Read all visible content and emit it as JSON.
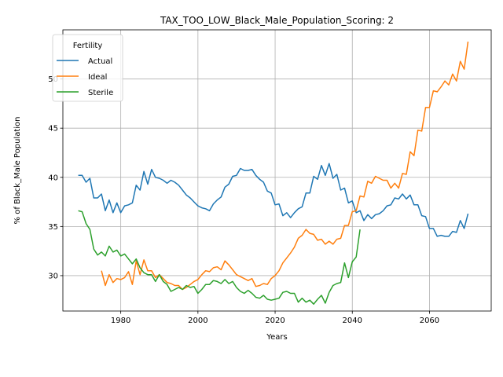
{
  "chart_data": {
    "type": "line",
    "title": "TAX_TOO_LOW_Black_Male_Population_Scoring: 2",
    "xlabel": "Years",
    "ylabel": "% of Black_Male Population",
    "xlim": [
      1965,
      2076
    ],
    "ylim": [
      26.4,
      55
    ],
    "xticks": [
      1980,
      2000,
      2020,
      2040,
      2060
    ],
    "yticks": [
      30,
      35,
      40,
      45,
      50
    ],
    "grid": true,
    "legend": {
      "title": "Fertility",
      "placement": "top-left"
    },
    "series": [
      {
        "name": "Actual",
        "color": "#1f77b4",
        "x": [
          1969,
          1970,
          1971,
          1972,
          1973,
          1974,
          1975,
          1976,
          1977,
          1978,
          1979,
          1980,
          1981,
          1982,
          1983,
          1984,
          1985,
          1986,
          1987,
          1988,
          1989,
          1990,
          1991,
          1992,
          1993,
          1994,
          1995,
          1996,
          1997,
          1998,
          1999,
          2000,
          2001,
          2002,
          2003,
          2004,
          2005,
          2006,
          2007,
          2008,
          2009,
          2010,
          2011,
          2012,
          2013,
          2014,
          2015,
          2016,
          2017,
          2018,
          2019,
          2020,
          2021,
          2022,
          2023,
          2024,
          2025,
          2026,
          2027,
          2028,
          2029,
          2030,
          2031,
          2032,
          2033,
          2034,
          2035,
          2036,
          2037,
          2038,
          2039,
          2040,
          2041,
          2042,
          2043,
          2044,
          2045,
          2046,
          2047,
          2048,
          2049,
          2050,
          2051,
          2052,
          2053,
          2054,
          2055,
          2056,
          2057,
          2058,
          2059,
          2060,
          2061,
          2062,
          2063,
          2064,
          2065,
          2066,
          2067,
          2068,
          2069,
          2070
        ],
        "values": [
          40.2,
          40.2,
          39.5,
          39.9,
          37.9,
          37.9,
          38.3,
          36.6,
          37.7,
          36.4,
          37.4,
          36.4,
          37.1,
          37.2,
          37.4,
          39.2,
          38.7,
          40.6,
          39.3,
          40.8,
          40.0,
          39.9,
          39.7,
          39.4,
          39.7,
          39.5,
          39.2,
          38.7,
          38.2,
          37.9,
          37.5,
          37.1,
          36.9,
          36.8,
          36.6,
          37.3,
          37.7,
          38.0,
          39.0,
          39.3,
          40.1,
          40.2,
          40.9,
          40.7,
          40.7,
          40.8,
          40.2,
          39.8,
          39.5,
          38.6,
          38.4,
          37.2,
          37.3,
          36.1,
          36.4,
          35.9,
          36.4,
          36.8,
          37.0,
          38.4,
          38.4,
          40.1,
          39.8,
          41.2,
          40.2,
          41.4,
          39.9,
          40.3,
          38.7,
          38.9,
          37.4,
          37.6,
          36.4,
          36.6,
          35.6,
          36.2,
          35.8,
          36.2,
          36.3,
          36.6,
          37.1,
          37.2,
          37.9,
          37.8,
          38.3,
          37.8,
          38.2,
          37.2,
          37.2,
          36.1,
          36.0,
          34.8,
          34.8,
          34.0,
          34.1,
          34.0,
          34.0,
          34.5,
          34.4,
          35.6,
          34.8,
          36.3
        ]
      },
      {
        "name": "Ideal",
        "color": "#ff7f0e",
        "x": [
          1975,
          1976,
          1977,
          1978,
          1979,
          1980,
          1981,
          1982,
          1983,
          1984,
          1985,
          1986,
          1987,
          1988,
          1989,
          1990,
          1991,
          1992,
          1993,
          1994,
          1995,
          1996,
          1997,
          1998,
          1999,
          2000,
          2001,
          2002,
          2003,
          2004,
          2005,
          2006,
          2007,
          2008,
          2009,
          2010,
          2011,
          2012,
          2013,
          2014,
          2015,
          2016,
          2017,
          2018,
          2019,
          2020,
          2021,
          2022,
          2023,
          2024,
          2025,
          2026,
          2027,
          2028,
          2029,
          2030,
          2031,
          2032,
          2033,
          2034,
          2035,
          2036,
          2037,
          2038,
          2039,
          2040,
          2041,
          2042,
          2043,
          2044,
          2045,
          2046,
          2047,
          2048,
          2049,
          2050,
          2051,
          2052,
          2053,
          2054,
          2055,
          2056,
          2057,
          2058,
          2059,
          2060,
          2061,
          2062,
          2063,
          2064,
          2065,
          2066,
          2067,
          2068,
          2069,
          2070
        ],
        "values": [
          30.5,
          29.0,
          30.1,
          29.3,
          29.7,
          29.6,
          29.8,
          30.4,
          29.1,
          31.5,
          30.1,
          31.6,
          30.5,
          30.5,
          29.8,
          30.1,
          29.7,
          29.3,
          29.2,
          29.0,
          29.0,
          28.6,
          28.8,
          29.1,
          29.4,
          29.6,
          30.1,
          30.5,
          30.4,
          30.8,
          30.9,
          30.6,
          31.5,
          31.1,
          30.6,
          30.1,
          29.9,
          29.7,
          29.5,
          29.7,
          28.9,
          29.0,
          29.2,
          29.1,
          29.7,
          30.0,
          30.5,
          31.3,
          31.8,
          32.3,
          32.9,
          33.8,
          34.1,
          34.7,
          34.3,
          34.2,
          33.6,
          33.7,
          33.2,
          33.5,
          33.2,
          33.7,
          33.8,
          35.1,
          35.1,
          36.5,
          36.6,
          38.1,
          38.0,
          39.6,
          39.4,
          40.1,
          39.9,
          39.7,
          39.7,
          38.9,
          39.4,
          38.9,
          40.4,
          40.3,
          42.6,
          42.2,
          44.8,
          44.7,
          47.1,
          47.1,
          48.8,
          48.7,
          49.2,
          49.8,
          49.4,
          50.5,
          49.8,
          51.8,
          51.0,
          53.8
        ]
      },
      {
        "name": "Sterile",
        "color": "#2ca02c",
        "x": [
          1969,
          1970,
          1971,
          1972,
          1973,
          1974,
          1975,
          1976,
          1977,
          1978,
          1979,
          1980,
          1981,
          1982,
          1983,
          1984,
          1985,
          1986,
          1987,
          1988,
          1989,
          1990,
          1991,
          1992,
          1993,
          1994,
          1995,
          1996,
          1997,
          1998,
          1999,
          2000,
          2001,
          2002,
          2003,
          2004,
          2005,
          2006,
          2007,
          2008,
          2009,
          2010,
          2011,
          2012,
          2013,
          2014,
          2015,
          2016,
          2017,
          2018,
          2019,
          2020,
          2021,
          2022,
          2023,
          2024,
          2025,
          2026,
          2027,
          2028,
          2029,
          2030,
          2031,
          2032,
          2033,
          2034,
          2035,
          2036,
          2037,
          2038,
          2039,
          2040,
          2041,
          2042
        ],
        "values": [
          36.6,
          36.5,
          35.3,
          34.7,
          32.7,
          32.1,
          32.4,
          32.0,
          33.0,
          32.4,
          32.6,
          32.0,
          32.2,
          31.7,
          31.2,
          31.7,
          30.8,
          30.3,
          30.1,
          30.1,
          29.4,
          30.1,
          29.4,
          29.1,
          28.4,
          28.6,
          28.8,
          28.6,
          29.0,
          28.8,
          28.9,
          28.2,
          28.6,
          29.1,
          29.1,
          29.5,
          29.4,
          29.2,
          29.6,
          29.2,
          29.4,
          28.8,
          28.4,
          28.2,
          28.5,
          28.2,
          27.8,
          27.7,
          28.0,
          27.6,
          27.5,
          27.6,
          27.7,
          28.3,
          28.4,
          28.2,
          28.2,
          27.3,
          27.7,
          27.3,
          27.5,
          27.1,
          27.6,
          28.0,
          27.2,
          28.3,
          29.0,
          29.2,
          29.3,
          31.3,
          29.8,
          31.4,
          31.9,
          34.7
        ]
      }
    ]
  }
}
